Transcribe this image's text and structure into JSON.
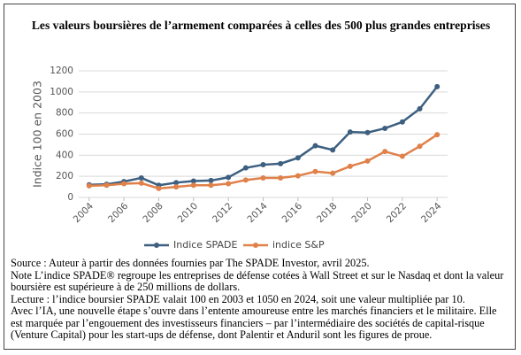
{
  "chart_data": {
    "type": "line",
    "title": "Les valeurs boursières de l’armement comparées à celles des 500 plus grandes entreprises",
    "y_label": "Indice 100 en 2003",
    "x": [
      2004,
      2005,
      2006,
      2007,
      2008,
      2009,
      2010,
      2011,
      2012,
      2013,
      2014,
      2015,
      2016,
      2017,
      2018,
      2019,
      2020,
      2021,
      2022,
      2023,
      2024
    ],
    "series": [
      {
        "name": "Indice SPADE",
        "color": "#3d5f80",
        "values": [
          120,
          125,
          150,
          185,
          115,
          140,
          155,
          160,
          190,
          280,
          310,
          320,
          375,
          490,
          450,
          620,
          615,
          655,
          715,
          840,
          1050
        ]
      },
      {
        "name": "indice S&P",
        "color": "#e0814a",
        "values": [
          110,
          115,
          130,
          135,
          85,
          100,
          115,
          115,
          130,
          165,
          185,
          185,
          205,
          245,
          230,
          295,
          345,
          435,
          390,
          485,
          595
        ]
      }
    ],
    "xlim": [
      2003.4,
      2024.6
    ],
    "xticks": [
      2004,
      2006,
      2008,
      2010,
      2012,
      2014,
      2016,
      2018,
      2020,
      2022,
      2024
    ],
    "ylim": [
      0,
      1200
    ],
    "yticks": [
      0,
      200,
      400,
      600,
      800,
      1000,
      1200
    ],
    "grid": true
  },
  "notes": [
    "Source : Auteur à partir des données fournies par The SPADE Investor, avril 2025.",
    "Note L’indice SPADE® regroupe les entreprises de défense cotées à Wall Street et sur le Nasdaq et dont la valeur boursière est supérieure à  de 250 millions de dollars.",
    "Lecture : l’indice boursier SPADE valait 100 en 2003 et 1050 en 2024, soit une valeur multipliée par 10.",
    "Avec l’IA, une nouvelle étape s’ouvre dans l’entente amoureuse entre les marchés financiers et le militaire. Elle est marquée par l’engouement des investisseurs financiers – par l’intermédiaire des sociétés de capital-risque (Venture Capital) pour les start-ups de défense, dont Palentir et Anduril sont les figures de proue."
  ]
}
